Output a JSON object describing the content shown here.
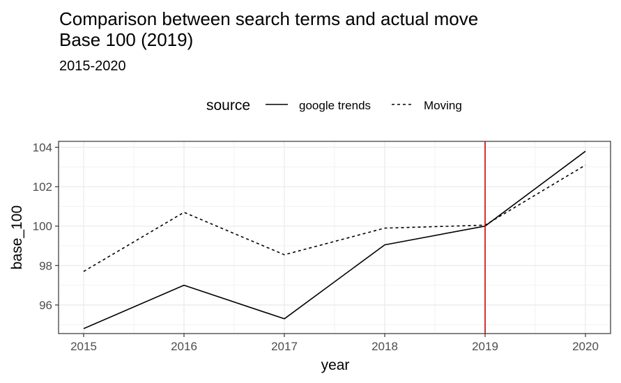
{
  "chart_data": {
    "type": "line",
    "title": "Comparison between search terms and actual move",
    "title_line2": "Base 100 (2019)",
    "subtitle": "2015-2020",
    "xlabel": "year",
    "ylabel": "base_100",
    "x": [
      2015,
      2016,
      2017,
      2018,
      2019,
      2020
    ],
    "xlim": [
      2014.75,
      2020.25
    ],
    "ylim": [
      94.55,
      104.3
    ],
    "yticks": [
      96,
      98,
      100,
      102,
      104
    ],
    "grid": true,
    "legend_title": "source",
    "legend_position": "top",
    "series": [
      {
        "name": "google trends",
        "values": [
          94.8,
          97.0,
          95.3,
          99.05,
          100.0,
          103.8
        ],
        "linetype": "solid",
        "color": "#000000"
      },
      {
        "name": "Moving",
        "values": [
          97.7,
          100.7,
          98.55,
          99.9,
          100.05,
          103.1
        ],
        "linetype": "dashed",
        "color": "#000000"
      }
    ],
    "reference_line": {
      "x": 2019,
      "color": "#cc0000"
    }
  }
}
